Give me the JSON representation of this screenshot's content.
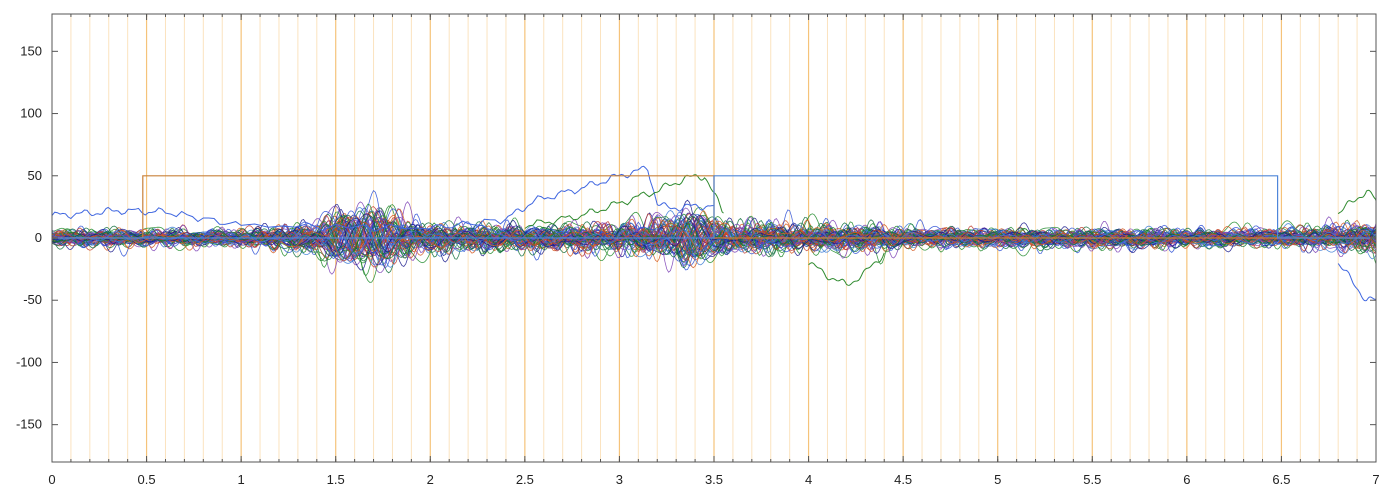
{
  "chart_data": {
    "type": "line",
    "title": "",
    "xlabel": "",
    "ylabel": "",
    "xlim": [
      0,
      7
    ],
    "ylim": [
      -180,
      180
    ],
    "x_ticks": [
      0,
      0.5,
      1,
      1.5,
      2,
      2.5,
      3,
      3.5,
      4,
      4.5,
      5,
      5.5,
      6,
      6.5,
      7
    ],
    "x_tick_labels": [
      "0",
      "0.5",
      "1",
      "1.5",
      "2",
      "2.5",
      "3",
      "3.5",
      "4",
      "4.5",
      "5",
      "5.5",
      "6",
      "6.5",
      "7"
    ],
    "y_ticks": [
      150,
      100,
      50,
      0,
      -50,
      -100,
      -150
    ],
    "y_tick_labels": [
      "150",
      "100",
      "50",
      "0",
      "-50",
      "-100",
      "-150"
    ],
    "grid": {
      "vertical_major_step": 0.5,
      "vertical_minor_step": 0.1,
      "major_color": "#f5c37a",
      "minor_color": "#fbe3bf"
    },
    "legend": "none",
    "series": [
      {
        "kind": "step-marker",
        "color": "#c8813a",
        "x": [
          0,
          0.48,
          0.48,
          3.5,
          3.5,
          7
        ],
        "y": [
          0,
          0,
          50,
          50,
          0,
          0
        ]
      },
      {
        "kind": "step-marker",
        "color": "#4f86d9",
        "x": [
          0,
          3.5,
          3.5,
          6.48,
          6.48,
          7
        ],
        "y": [
          0,
          0,
          50,
          50,
          0,
          0
        ]
      },
      {
        "kind": "signal-bundle",
        "count": 64,
        "colors": [
          "#2b4fd6",
          "#1f8a2a",
          "#c0392b",
          "#7b3fb5",
          "#1a1a8c",
          "#0f6e3b",
          "#d4571e",
          "#3a7bd5"
        ],
        "amplitude_envelope": {
          "x": [
            0,
            0.3,
            0.5,
            1.0,
            1.3,
            1.5,
            1.7,
            1.9,
            2.2,
            2.5,
            3.0,
            3.3,
            3.5,
            3.8,
            4.0,
            4.3,
            4.5,
            5.0,
            5.5,
            6.0,
            6.5,
            6.8,
            7.0
          ],
          "y": [
            9,
            9,
            8,
            8,
            14,
            22,
            24,
            18,
            13,
            12,
            14,
            22,
            18,
            14,
            13,
            14,
            10,
            9,
            10,
            9,
            9,
            12,
            16
          ]
        }
      },
      {
        "kind": "highlight-trace",
        "color": "#3f66e0",
        "x": [
          0,
          0.2,
          0.35,
          0.6,
          1.0,
          2.0,
          2.4,
          2.55,
          2.8,
          3.0,
          3.15,
          3.2,
          3.25,
          3.35,
          3.5
        ],
        "y": [
          18,
          20,
          22,
          21,
          10,
          8,
          15,
          30,
          40,
          50,
          56,
          28,
          24,
          25,
          26
        ]
      },
      {
        "kind": "highlight-trace",
        "color": "#2f8a2f",
        "x": [
          2.5,
          2.8,
          3.0,
          3.2,
          3.35,
          3.45,
          3.55
        ],
        "y": [
          10,
          18,
          28,
          38,
          48,
          50,
          20
        ]
      },
      {
        "kind": "highlight-trace",
        "color": "#2f8a2f",
        "x": [
          4.0,
          4.1,
          4.2,
          4.3,
          4.4
        ],
        "y": [
          -20,
          -30,
          -38,
          -28,
          -12
        ]
      },
      {
        "kind": "highlight-trace",
        "color": "#3f66e0",
        "x": [
          6.8,
          6.9,
          6.95,
          7.0
        ],
        "y": [
          -20,
          -40,
          -50,
          -50
        ]
      },
      {
        "kind": "highlight-trace",
        "color": "#2f8a2f",
        "x": [
          6.8,
          6.9,
          6.95,
          7.0
        ],
        "y": [
          20,
          32,
          38,
          30
        ]
      }
    ]
  }
}
